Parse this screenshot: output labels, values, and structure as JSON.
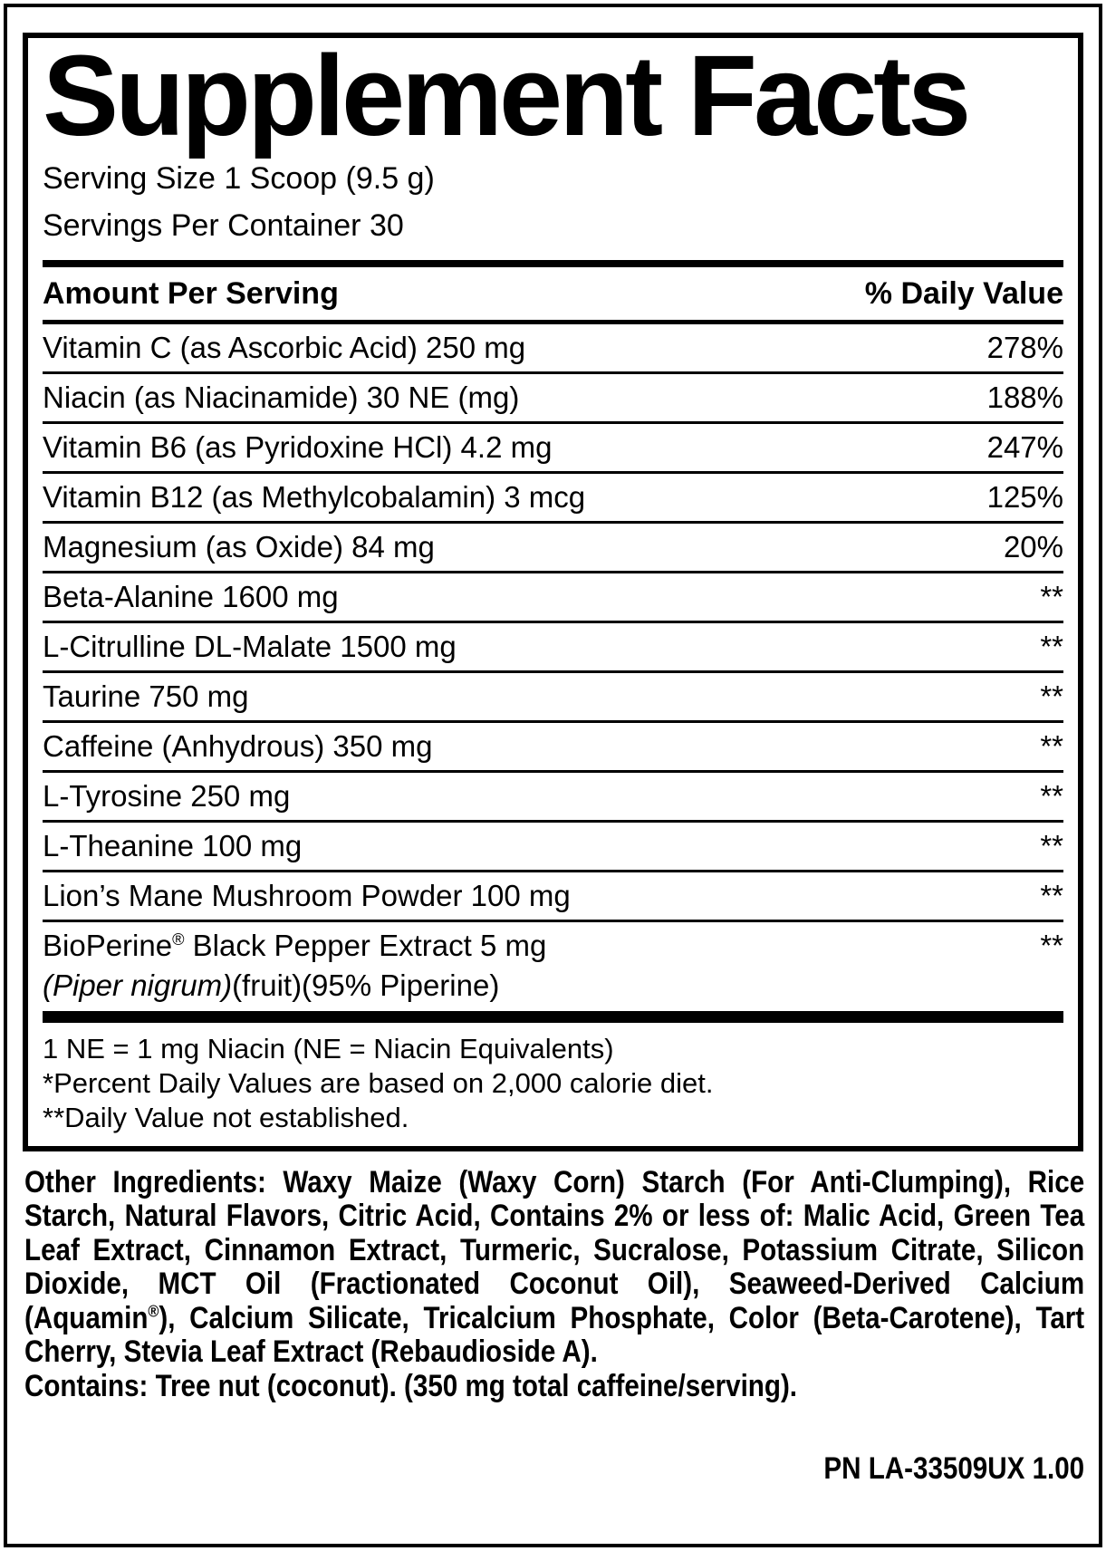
{
  "colors": {
    "ink": "#000000",
    "background": "#ffffff"
  },
  "label": {
    "title": "Supplement Facts",
    "serving_size": "Serving Size 1 Scoop (9.5 g)",
    "servings_per_container": "Servings Per Container 30",
    "table": {
      "amount_header": "Amount Per Serving",
      "dv_header": "% Daily Value",
      "rows": [
        {
          "name": "Vitamin C (as Ascorbic Acid) 250 mg",
          "dv": "278%"
        },
        {
          "name": "Niacin (as Niacinamide) 30 NE (mg)",
          "dv": "188%"
        },
        {
          "name": "Vitamin B6 (as Pyridoxine HCl) 4.2 mg",
          "dv": "247%"
        },
        {
          "name": "Vitamin B12 (as Methylcobalamin) 3 mcg",
          "dv": "125%"
        },
        {
          "name": "Magnesium (as Oxide) 84 mg",
          "dv": "20%"
        },
        {
          "name": "Beta-Alanine 1600 mg",
          "dv": "**"
        },
        {
          "name": "L-Citrulline DL-Malate 1500 mg",
          "dv": "**"
        },
        {
          "name": "Taurine 750 mg",
          "dv": "**"
        },
        {
          "name": "Caffeine (Anhydrous) 350 mg",
          "dv": "**"
        },
        {
          "name": "L-Tyrosine 250 mg",
          "dv": "**"
        },
        {
          "name": "L-Theanine 100 mg",
          "dv": "**"
        },
        {
          "name": "Lion’s Mane Mushroom Powder 100 mg",
          "dv": "**"
        },
        {
          "name": "BioPerine® Black Pepper Extract 5 mg",
          "name_line2": {
            "pre": "",
            "italic": "(Piper nigrum)",
            "post": "(fruit)(95% Piperine)"
          },
          "dv": "**"
        }
      ]
    },
    "footnotes": [
      "1 NE = 1 mg Niacin (NE = Niacin Equivalents)",
      "*Percent Daily Values are based on 2,000 calorie diet.",
      "**Daily Value not established."
    ],
    "other_ingredients": "Other Ingredients: Waxy Maize (Waxy Corn) Starch (For Anti-Clumping), Rice Starch, Natural Flavors, Citric Acid, Contains 2% or less of: Malic Acid, Green Tea Leaf Extract, Cinnamon Extract, Turmeric, Sucralose, Potassium Citrate, Silicon Dioxide, MCT Oil (Fractionated Coconut Oil), Seaweed-Derived Calcium (Aquamin®), Calcium Silicate, Tricalcium Phosphate, Color (Beta-Carotene), Tart Cherry, Stevia Leaf Extract (Rebaudioside A).",
    "contains": "Contains: Tree nut (coconut). (350 mg total caffeine/serving).",
    "part_number": "PN LA-33509UX 1.00"
  }
}
